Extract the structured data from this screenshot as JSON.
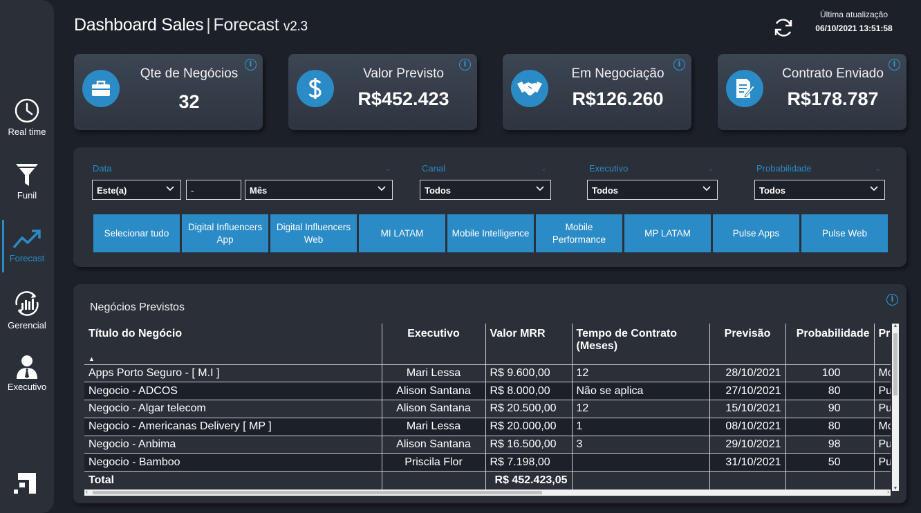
{
  "header": {
    "title_main": "Dashboard Sales",
    "title_sep": "|",
    "title_sub": "Forecast",
    "version": "v2.3",
    "update_label": "Última atualização",
    "update_value": "06/10/2021 13:51:58"
  },
  "sidebar": {
    "items": [
      {
        "label": "Real time",
        "icon": "clock-icon"
      },
      {
        "label": "Funil",
        "icon": "funnel-icon"
      },
      {
        "label": "Forecast",
        "icon": "trend-up-icon",
        "active": true
      },
      {
        "label": "Gerencial",
        "icon": "bar-chart-cycle-icon"
      },
      {
        "label": "Executivo",
        "icon": "user-tie-icon"
      }
    ]
  },
  "kpis": [
    {
      "label": "Qte de Negócios",
      "value": "32",
      "icon": "briefcase-icon"
    },
    {
      "label": "Valor Previsto",
      "value": "R$452.423",
      "icon": "dollar-icon"
    },
    {
      "label": "Em Negociação",
      "value": "R$126.260",
      "icon": "handshake-icon"
    },
    {
      "label": "Contrato Enviado",
      "value": "R$178.787",
      "icon": "contract-icon"
    }
  ],
  "filters": {
    "data_label": "Data",
    "data_period": "Este(a)",
    "data_amount": "-",
    "data_unit": "Mês",
    "canal_label": "Canal",
    "canal_value": "Todos",
    "executivo_label": "Executivo",
    "executivo_value": "Todos",
    "probabilidade_label": "Probabilidade",
    "probabilidade_value": "Todos"
  },
  "slicers": [
    "Selecionar tudo",
    "Digital Influencers App",
    "Digital Influencers Web",
    "MI LATAM",
    "Mobile Intelligence",
    "Mobile Performance",
    "MP LATAM",
    "Pulse Apps",
    "Pulse Web"
  ],
  "table": {
    "title": "Negócios Previstos",
    "columns": [
      "Título do Negócio",
      "Executivo",
      "Valor MRR",
      "Tempo de Contrato (Meses)",
      "Previsão",
      "Probabilidade",
      "Pro"
    ],
    "rows": [
      [
        "Apps Porto Seguro - [ M.I ]",
        "Mari Lessa",
        "R$ 9.600,00",
        "12",
        "28/10/2021",
        "100",
        "Mo"
      ],
      [
        "Negocio - ADCOS",
        "Alison Santana",
        "R$ 8.000,00",
        "Não se aplica",
        "27/10/2021",
        "80",
        "Pu"
      ],
      [
        "Negocio - Algar telecom",
        "Alison Santana",
        "R$ 20.500,00",
        "12",
        "15/10/2021",
        "90",
        "Pu"
      ],
      [
        "Negocio - Americanas Delivery [ MP ]",
        "Mari Lessa",
        "R$ 20.000,00",
        "1",
        "08/10/2021",
        "80",
        "Mo"
      ],
      [
        "Negocio - Anbima",
        "Alison Santana",
        "R$ 16.500,00",
        "3",
        "29/10/2021",
        "98",
        "Pu"
      ],
      [
        "Negocio - Bamboo",
        "Priscila Flor",
        "R$ 7.198,00",
        "",
        "31/10/2021",
        "50",
        "Pu"
      ]
    ],
    "total_label": "Total",
    "total_value": "R$ 452.423,05"
  }
}
